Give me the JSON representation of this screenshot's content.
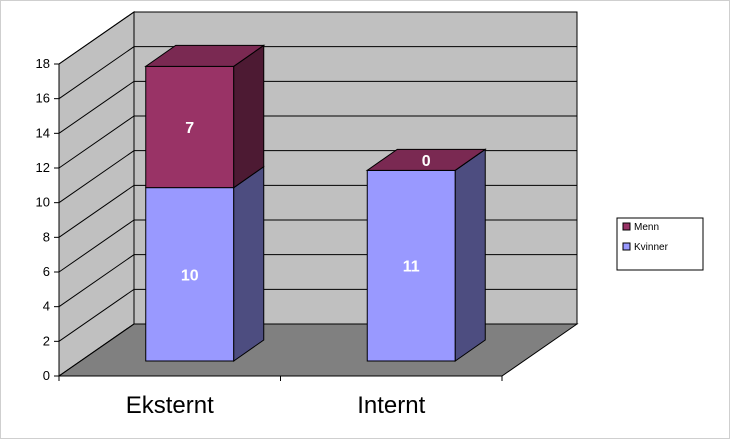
{
  "chart_data": {
    "type": "bar",
    "stacked": true,
    "three_d": true,
    "categories": [
      "Eksternt",
      "Internt"
    ],
    "series": [
      {
        "name": "Kvinner",
        "values": [
          10,
          11
        ],
        "color": "#9999FF"
      },
      {
        "name": "Menn",
        "values": [
          7,
          0
        ],
        "color": "#993366"
      }
    ],
    "ylim": [
      0,
      18
    ],
    "yticks": [
      "0",
      "2",
      "4",
      "6",
      "8",
      "10",
      "12",
      "14",
      "16",
      "18"
    ],
    "grid": true,
    "legend_position": "right",
    "wall_color": "#C0C0C0",
    "floor_color": "#808080"
  }
}
